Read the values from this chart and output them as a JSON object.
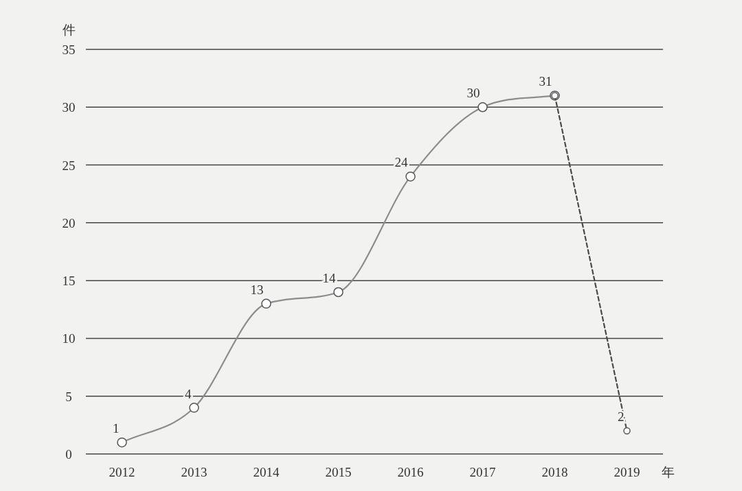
{
  "chart_data": {
    "type": "line",
    "xlabel": "年",
    "ylabel": "件",
    "categories": [
      "2012",
      "2013",
      "2014",
      "2015",
      "2016",
      "2017",
      "2018",
      "2019"
    ],
    "ylim": [
      0,
      35
    ],
    "yticks": [
      0,
      5,
      10,
      15,
      20,
      25,
      30,
      35
    ],
    "grid": "y",
    "marker": "circle",
    "series": [
      {
        "color": "#8c8c8c",
        "line_style": "solid",
        "values": [
          1,
          4,
          13,
          14,
          24,
          30,
          31,
          null
        ],
        "value_labels": [
          "1",
          "4",
          "13",
          "14",
          "24",
          "30",
          "31",
          null
        ]
      },
      {
        "color": "#4a4a4a",
        "line_style": "dashed",
        "values": [
          null,
          null,
          null,
          null,
          null,
          null,
          31,
          2
        ],
        "value_labels": [
          null,
          null,
          null,
          null,
          null,
          null,
          null,
          "2"
        ]
      }
    ]
  }
}
